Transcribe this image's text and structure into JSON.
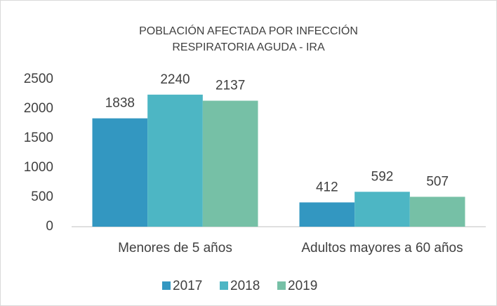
{
  "chart_data": {
    "type": "bar",
    "title": "POBLACIÓN AFECTADA POR INFECCIÓN RESPIRATORIA AGUDA - IRA",
    "categories": [
      "Menores de 5 años",
      "Adultos mayores a 60 años"
    ],
    "series": [
      {
        "name": "2017",
        "color": "#3397c1",
        "values": [
          1838,
          412
        ]
      },
      {
        "name": "2018",
        "color": "#4db6c4",
        "values": [
          2240,
          592
        ]
      },
      {
        "name": "2019",
        "color": "#76c0a6",
        "values": [
          2137,
          507
        ]
      }
    ],
    "ylim": [
      0,
      2500
    ],
    "yticks": [
      0,
      500,
      1000,
      1500,
      2000,
      2500
    ],
    "grid": false,
    "legend": "bottom"
  }
}
